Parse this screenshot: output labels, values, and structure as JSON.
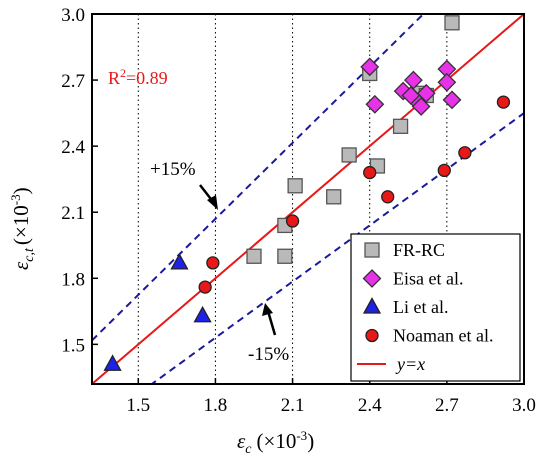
{
  "chart_data": {
    "type": "scatter",
    "xlabel": {
      "symbol": "ε",
      "sub": "c",
      "unit_pre": "(×10",
      "exp": "-3",
      "unit_post": ")"
    },
    "ylabel": {
      "symbol": "ε",
      "sub": "c,t",
      "unit_pre": "(×10",
      "exp": "-3",
      "unit_post": ")"
    },
    "xlim": [
      1.32,
      3.0
    ],
    "ylim": [
      1.32,
      3.0
    ],
    "xticks": [
      "1.5",
      "1.8",
      "2.1",
      "2.4",
      "2.7",
      "3.0"
    ],
    "yticks": [
      "1.5",
      "1.8",
      "2.1",
      "2.4",
      "2.7",
      "3.0"
    ],
    "grid": {
      "vertical_dotted": true,
      "horizontal_dotted": false
    },
    "r2_label": {
      "text": "R",
      "sup": "2",
      "rest": "=0.89",
      "color": "#e8191a"
    },
    "series": [
      {
        "name": "FR-RC",
        "marker": "square",
        "fill": "#b9b9b9",
        "stroke": "#555555",
        "points": [
          [
            2.72,
            2.96
          ],
          [
            2.4,
            2.73
          ],
          [
            2.11,
            2.22
          ],
          [
            2.07,
            2.04
          ],
          [
            1.95,
            1.9
          ],
          [
            2.07,
            1.9
          ],
          [
            2.32,
            2.36
          ],
          [
            2.26,
            2.17
          ],
          [
            2.43,
            2.31
          ],
          [
            2.52,
            2.49
          ],
          [
            2.59,
            2.64
          ],
          [
            2.62,
            2.63
          ]
        ]
      },
      {
        "name": "Eisa et al.",
        "marker": "diamond",
        "fill": "#e832e8",
        "stroke": "#333333",
        "points": [
          [
            2.4,
            2.76
          ],
          [
            2.42,
            2.59
          ],
          [
            2.53,
            2.65
          ],
          [
            2.57,
            2.7
          ],
          [
            2.57,
            2.62
          ],
          [
            2.6,
            2.58
          ],
          [
            2.62,
            2.64
          ],
          [
            2.56,
            2.63
          ],
          [
            2.7,
            2.75
          ],
          [
            2.7,
            2.69
          ],
          [
            2.72,
            2.61
          ]
        ]
      },
      {
        "name": "Li et al.",
        "marker": "triangle",
        "fill": "#1e22e6",
        "stroke": "#222222",
        "points": [
          [
            1.4,
            1.41
          ],
          [
            1.75,
            1.63
          ],
          [
            1.66,
            1.87
          ]
        ]
      },
      {
        "name": "Noaman et al.",
        "marker": "circle",
        "fill": "#e81818",
        "stroke": "#222222",
        "points": [
          [
            1.76,
            1.76
          ],
          [
            1.79,
            1.87
          ],
          [
            2.1,
            2.06
          ],
          [
            2.4,
            2.28
          ],
          [
            2.47,
            2.17
          ],
          [
            2.69,
            2.29
          ],
          [
            2.77,
            2.37
          ],
          [
            2.92,
            2.6
          ]
        ]
      }
    ],
    "reference_lines": [
      {
        "name": "y=x",
        "slope": 1.0,
        "color": "#e81818",
        "style": "solid"
      },
      {
        "name": "+15%",
        "slope": 1.15,
        "color": "#1a1a9e",
        "style": "dashed"
      },
      {
        "name": "-15%",
        "slope": 0.85,
        "color": "#1a1a9e",
        "style": "dashed"
      }
    ],
    "annotations": {
      "plus": "+15%",
      "minus": "-15%"
    },
    "legend": {
      "position": "bottom-right",
      "entries": [
        {
          "label": "FR-RC",
          "marker": "square"
        },
        {
          "label": "Eisa et al.",
          "marker": "diamond"
        },
        {
          "label": "Li et al.",
          "marker": "triangle"
        },
        {
          "label": "Noaman et al.",
          "marker": "circle"
        },
        {
          "label": "y=x",
          "marker": "line"
        }
      ]
    }
  }
}
